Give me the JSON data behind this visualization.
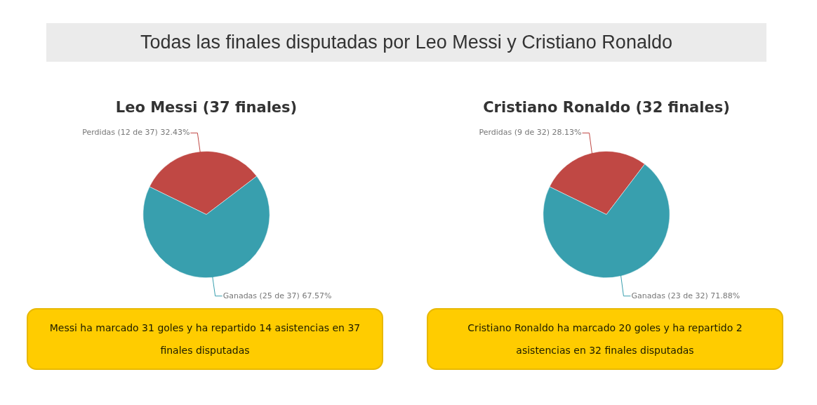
{
  "chart_data": [
    {
      "type": "other",
      "title": "Todas las finales disputadas por Leo Messi y Cristiano Ronaldo"
    },
    {
      "type": "pie",
      "title": "Leo Messi (37 finales)",
      "categories": [
        "Perdidas",
        "Ganadas"
      ],
      "values": [
        12,
        25
      ],
      "colors": [
        "#c04844",
        "#389fae"
      ],
      "value_labels": [
        "(12 de 37) 32.43%",
        "(25 de 37) 67.57%"
      ],
      "legend": false,
      "annotations": [
        "Messi ha marcado 31 goles y ha repartido 14 asistencias en 37 finales disputadas"
      ]
    },
    {
      "type": "pie",
      "title": "Cristiano Ronaldo (32 finales)",
      "categories": [
        "Perdidas",
        "Ganadas"
      ],
      "values": [
        9,
        23
      ],
      "colors": [
        "#c04844",
        "#389fae"
      ],
      "value_labels": [
        "(9 de 32) 28.13%",
        "(23 de 32) 71.88%"
      ],
      "legend": false,
      "annotations": [
        "Cristiano Ronaldo ha marcado 20 goles y ha repartido 2 asistencias en 32 finales disputadas"
      ]
    }
  ]
}
